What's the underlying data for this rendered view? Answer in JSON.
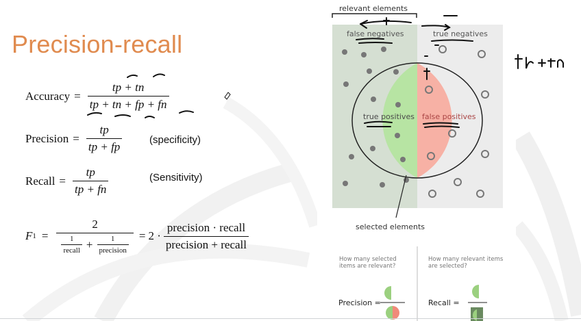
{
  "slide": {
    "title": "Precision-recall",
    "accuracy": {
      "lhs": "Accuracy",
      "num": "tp + tn",
      "den": "tp + tn + fp + fn"
    },
    "precision": {
      "lhs": "Precision",
      "num": "tp",
      "den": "tp + fp",
      "note": "(specificity)"
    },
    "recall": {
      "lhs": "Recall",
      "num": "tp",
      "den": "tp + fn",
      "note": "(Sensitivity)"
    },
    "f1": {
      "lhs": "F",
      "sub": "1",
      "two": "2",
      "recall_word": "recall",
      "precision_word": "precision",
      "one": "1",
      "rhs_coeff": "2 ·",
      "rhs_num": "precision · recall",
      "rhs_den": "precision + recall"
    }
  },
  "diagram": {
    "relevant_elements": "relevant elements",
    "false_negatives": "false negatives",
    "true_negatives": "true negatives",
    "true_positives": "true positives",
    "false_positives": "false positives",
    "selected_elements": "selected elements",
    "precision_question": "How many selected items are relevant?",
    "recall_question": "How many relevant items are selected?",
    "precision_label": "Precision =",
    "recall_label": "Recall =",
    "colors": {
      "relevant_bg": "#d5dfd2",
      "irrelevant_bg": "#ececec",
      "tp_fill": "#b7e4a3",
      "fp_fill": "#f7b1a5",
      "dot": "#777777"
    }
  },
  "annotation": {
    "handwriting": "tp + tn"
  }
}
